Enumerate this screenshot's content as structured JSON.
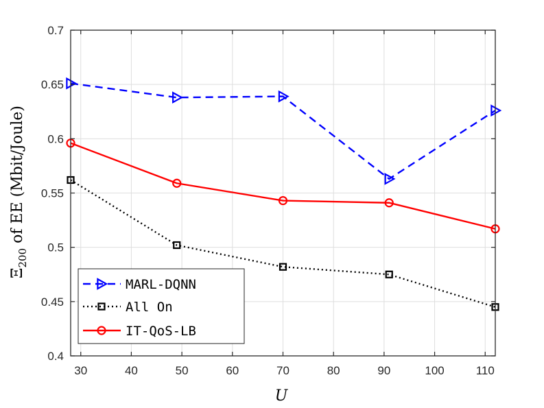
{
  "chart_data": {
    "type": "line",
    "title": "",
    "xlabel": "U",
    "ylabel_prefix": "Ξ",
    "ylabel_sub": "200",
    "ylabel_rest": " of EE (Mbit/Joule)",
    "xlim": [
      28,
      112
    ],
    "ylim": [
      0.4,
      0.7
    ],
    "x_ticks": [
      30,
      40,
      50,
      60,
      70,
      80,
      90,
      100,
      110
    ],
    "y_ticks": [
      0.4,
      0.45,
      0.5,
      0.55,
      0.6,
      0.65,
      0.7
    ],
    "x_tick_labels": [
      "30",
      "40",
      "50",
      "60",
      "70",
      "80",
      "90",
      "100",
      "110"
    ],
    "y_tick_labels": [
      "0.4",
      "0.45",
      "0.5",
      "0.55",
      "0.6",
      "0.65",
      "0.7"
    ],
    "grid": true,
    "legend_position": "bottom-left",
    "x": [
      28,
      49,
      70,
      91,
      112
    ],
    "series": [
      {
        "name": "MARL-DQNN",
        "values": [
          0.651,
          0.638,
          0.639,
          0.563,
          0.626
        ],
        "color": "#0000ff",
        "dash": "dashed",
        "marker": "triangle-right"
      },
      {
        "name": "All On",
        "values": [
          0.562,
          0.502,
          0.482,
          0.475,
          0.445
        ],
        "color": "#000000",
        "dash": "dotted",
        "marker": "square"
      },
      {
        "name": "IT-QoS-LB",
        "values": [
          0.596,
          0.559,
          0.543,
          0.541,
          0.517
        ],
        "color": "#ff0000",
        "dash": "solid",
        "marker": "circle"
      }
    ]
  }
}
